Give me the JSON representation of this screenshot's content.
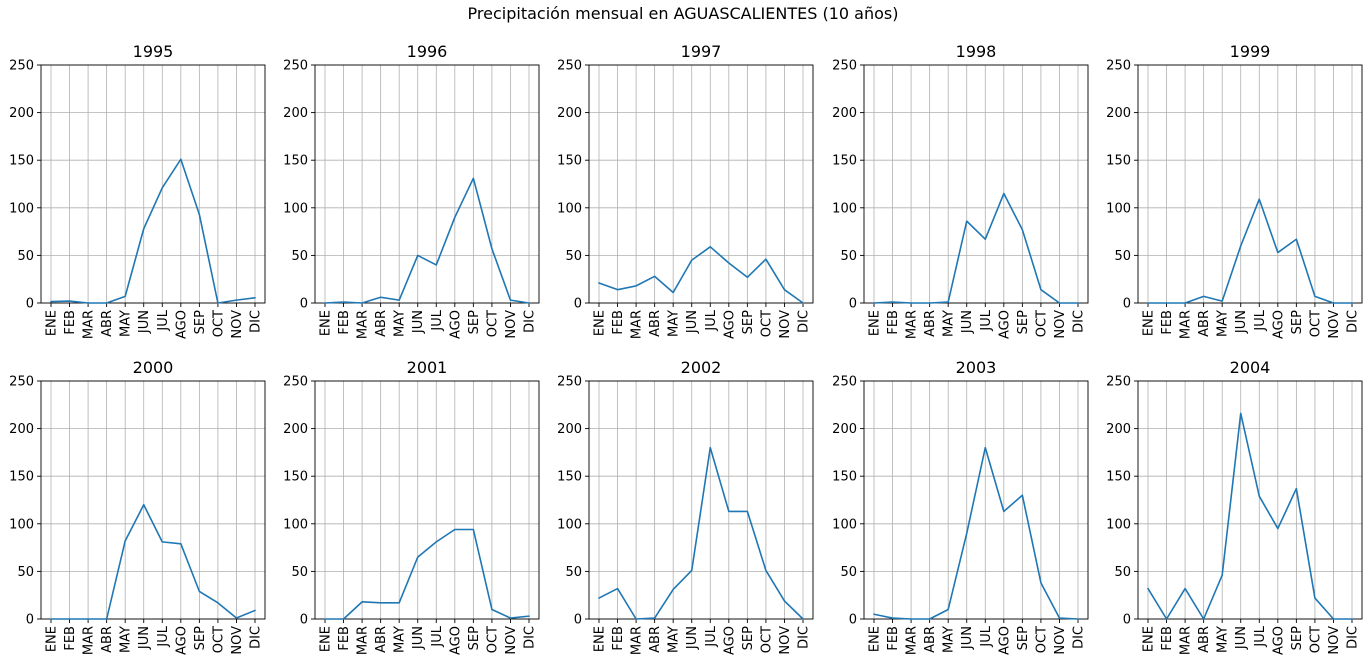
{
  "title": "Precipitación mensual en AGUASCALIENTES (10 años)",
  "colors": {
    "line": "#1f77b4",
    "grid": "#b0b0b0"
  },
  "chart_data": {
    "type": "line",
    "subplot_layout": {
      "rows": 2,
      "cols": 5
    },
    "months": [
      "ENE",
      "FEB",
      "MAR",
      "ABR",
      "MAY",
      "JUN",
      "JUL",
      "AGO",
      "SEP",
      "OCT",
      "NOV",
      "DIC"
    ],
    "ylim": [
      0,
      250
    ],
    "yticks": [
      0,
      50,
      100,
      150,
      200,
      250
    ],
    "grid": true,
    "panels": [
      {
        "title": "1995",
        "values": [
          1.5,
          2,
          0,
          0,
          7,
          78,
          121,
          151,
          93,
          0,
          3,
          5.5
        ]
      },
      {
        "title": "1996",
        "values": [
          0,
          1,
          0,
          6,
          3,
          50,
          40,
          90,
          131,
          57,
          3,
          0
        ]
      },
      {
        "title": "1997",
        "values": [
          21,
          14,
          18,
          28,
          11,
          45,
          59,
          42,
          27,
          46,
          14,
          0
        ]
      },
      {
        "title": "1998",
        "values": [
          0,
          1,
          0,
          0,
          1,
          86,
          67,
          115,
          77,
          14,
          0,
          0
        ]
      },
      {
        "title": "1999",
        "values": [
          0,
          0,
          0,
          7,
          2,
          60,
          109,
          53,
          67,
          7,
          0,
          0
        ]
      },
      {
        "title": "2000",
        "values": [
          0,
          0,
          0,
          0,
          82,
          120,
          81,
          79,
          29,
          17,
          1,
          9
        ]
      },
      {
        "title": "2001",
        "values": [
          0,
          0,
          18,
          17,
          17,
          65,
          81,
          94,
          94,
          10,
          1,
          3
        ]
      },
      {
        "title": "2002",
        "values": [
          22,
          32,
          0,
          1,
          31,
          51,
          180,
          113,
          113,
          51,
          19,
          0
        ]
      },
      {
        "title": "2003",
        "values": [
          5,
          1,
          0,
          0,
          10,
          90,
          180,
          113,
          130,
          38,
          1,
          0
        ]
      },
      {
        "title": "2004",
        "values": [
          32,
          0,
          32,
          0,
          46,
          216,
          129,
          95,
          137,
          22,
          0,
          0
        ]
      }
    ]
  }
}
